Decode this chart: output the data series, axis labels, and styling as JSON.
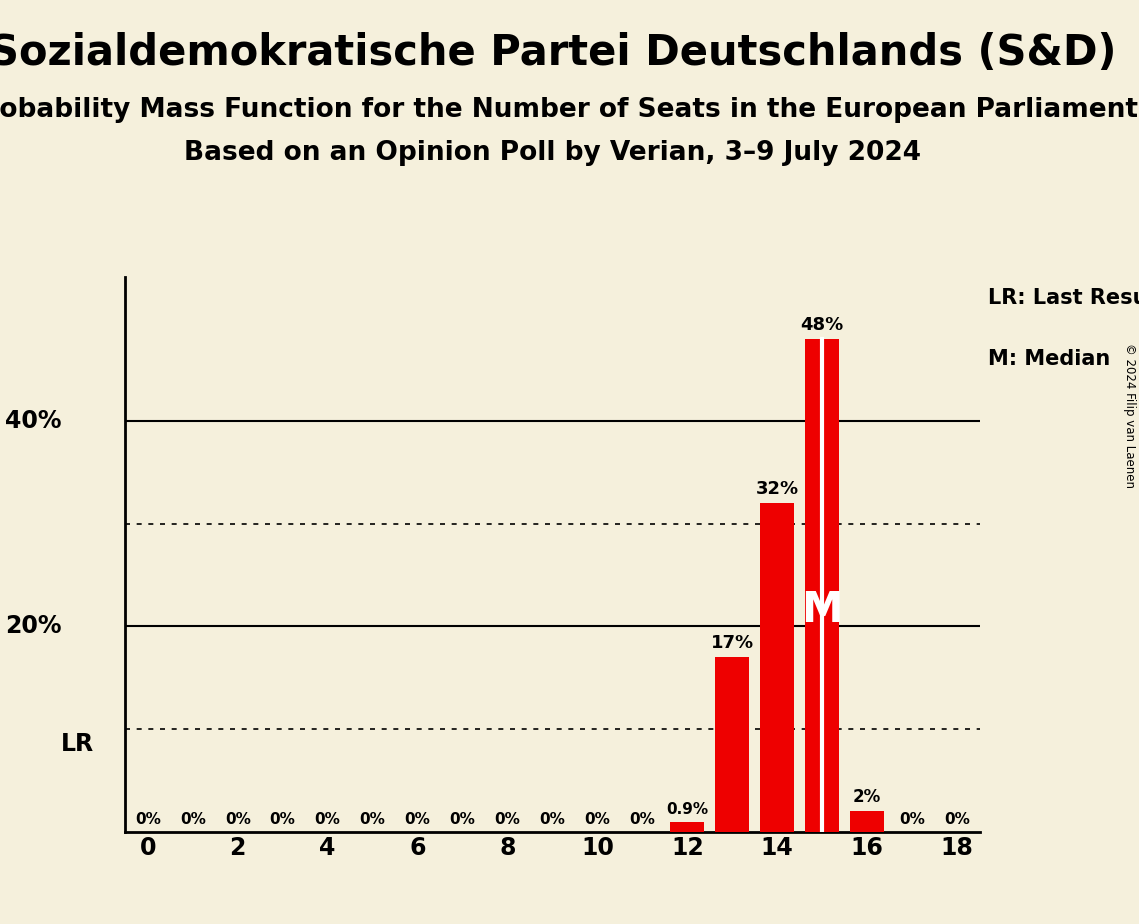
{
  "title": "Sozialdemokratische Partei Deutschlands (S&D)",
  "subtitle1": "Probability Mass Function for the Number of Seats in the European Parliament",
  "subtitle2": "Based on an Opinion Poll by Verian, 3–9 July 2024",
  "copyright": "© 2024 Filip van Laenen",
  "seats": [
    0,
    1,
    2,
    3,
    4,
    5,
    6,
    7,
    8,
    9,
    10,
    11,
    12,
    13,
    14,
    15,
    16,
    17,
    18
  ],
  "probabilities": [
    0.0,
    0.0,
    0.0,
    0.0,
    0.0,
    0.0,
    0.0,
    0.0,
    0.0,
    0.0,
    0.0,
    0.0,
    0.9,
    17.0,
    32.0,
    48.0,
    2.0,
    0.0,
    0.0
  ],
  "bar_color": "#EE0000",
  "background_color": "#F5F0DC",
  "last_result_seat": 15,
  "median_seat": 15,
  "xlim": [
    -0.5,
    18.5
  ],
  "ylim": [
    0,
    54
  ],
  "solid_gridlines": [
    20,
    40
  ],
  "dotted_gridlines": [
    10,
    30
  ],
  "xticks": [
    0,
    2,
    4,
    6,
    8,
    10,
    12,
    14,
    16,
    18
  ],
  "title_fontsize": 30,
  "subtitle_fontsize": 19,
  "subtitle2_fontsize": 19,
  "bar_width": 0.75,
  "legend_lr": "LR: Last Result",
  "legend_m": "M: Median",
  "lr_label": "LR",
  "m_label": "M",
  "copyright_text": "© 2024 Filip van Laenen"
}
